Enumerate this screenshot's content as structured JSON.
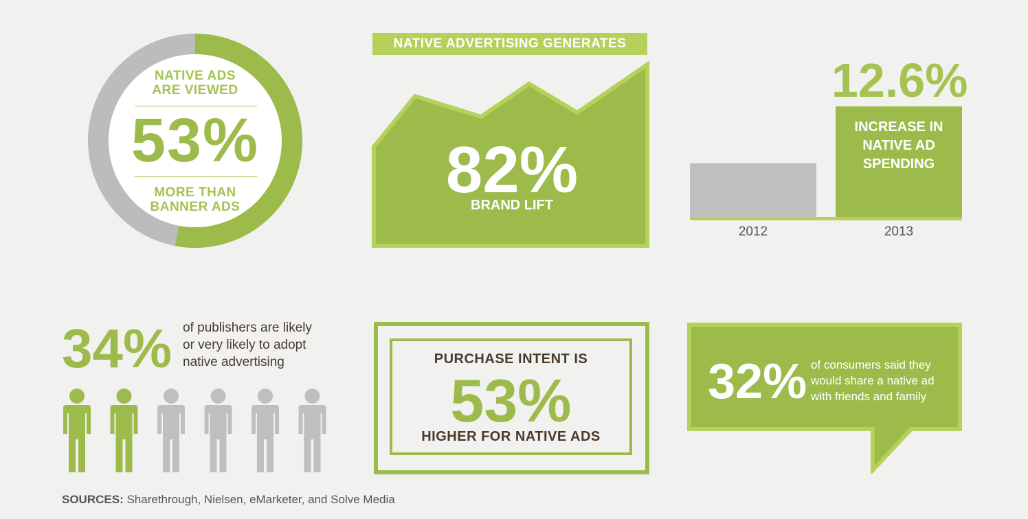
{
  "donut": {
    "top_label_1": "NATIVE ADS",
    "top_label_2": "ARE VIEWED",
    "value": "53%",
    "bottom_label_1": "MORE THAN",
    "bottom_label_2": "BANNER ADS",
    "fill_fraction": 0.53,
    "colors": {
      "fill": "#9dbb4a",
      "rest": "#bcbcbc"
    }
  },
  "brand_lift": {
    "header": "NATIVE ADVERTISING GENERATES",
    "value": "82%",
    "label": "BRAND LIFT"
  },
  "spending": {
    "value": "12.6%",
    "text_1": "INCREASE IN",
    "text_2": "NATIVE AD",
    "text_3": "SPENDING",
    "year_1": "2012",
    "year_2": "2013"
  },
  "publishers": {
    "value": "34%",
    "text_1": "of publishers are likely",
    "text_2": "or very likely to adopt",
    "text_3": "native advertising",
    "people_highlighted": 2,
    "people_total": 6
  },
  "purchase_intent": {
    "top": "PURCHASE INTENT IS",
    "value": "53%",
    "bottom": "HIGHER FOR NATIVE ADS"
  },
  "share": {
    "value": "32%",
    "text_1": "of consumers said they",
    "text_2": "would share a native ad",
    "text_3": "with friends and family"
  },
  "sources": {
    "label": "SOURCES:",
    "text": " Sharethrough, Nielsen, eMarketer, and Solve Media"
  },
  "colors": {
    "green": "#9dbb4a",
    "light_green": "#b6d15a",
    "gray": "#bfbfbf",
    "brown": "#4a3a2a",
    "background": "#f1f1f0"
  }
}
